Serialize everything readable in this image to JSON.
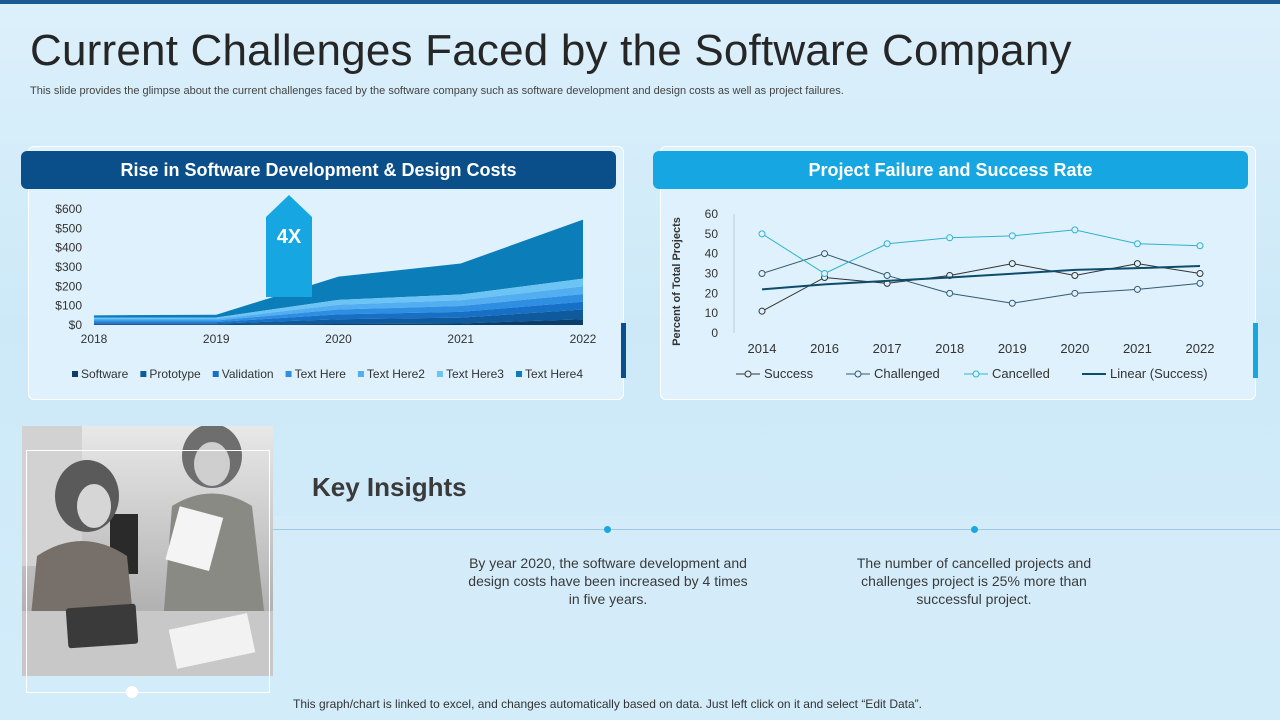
{
  "slide": {
    "title": "Current Challenges Faced by the Software Company",
    "subtitle": "This slide provides the glimpse about the current challenges faced by the software company such as software development and design costs as well as project failures.",
    "footer": "This graph/chart is linked to excel, and changes automatically based on data.  Just left click on it and select “Edit Data”."
  },
  "colors": {
    "dark_blue": "#0b4f8a",
    "light_blue": "#16a6e2",
    "accent_dot": "#1aa6e0"
  },
  "left_panel": {
    "header": "Rise in Software Development & Design Costs",
    "callout": "4X"
  },
  "right_panel": {
    "header": "Project Failure and Success Rate"
  },
  "insights": {
    "title": "Key Insights",
    "items": [
      "By year 2020, the software development and design costs have been increased by 4 times in five years.",
      "The number of cancelled projects and challenges project is 25% more than successful project."
    ]
  },
  "chart_data": [
    {
      "type": "area",
      "stacked": true,
      "categories": [
        "2018",
        "2019",
        "2020",
        "2021",
        "2022"
      ],
      "ylim": [
        0,
        600
      ],
      "yticks": [
        "$0",
        "$100",
        "$200",
        "$300",
        "$400",
        "$500",
        "$600"
      ],
      "legend_position": "bottom",
      "series": [
        {
          "name": "Software",
          "color": "#0a3d6b",
          "values": [
            2,
            2,
            5,
            8,
            30
          ]
        },
        {
          "name": "Prototype",
          "color": "#0e5a9c",
          "values": [
            5,
            5,
            25,
            30,
            50
          ]
        },
        {
          "name": "Validation",
          "color": "#1670c6",
          "values": [
            8,
            8,
            25,
            30,
            40
          ]
        },
        {
          "name": "Text Here",
          "color": "#2e8fe2",
          "values": [
            8,
            8,
            25,
            30,
            40
          ]
        },
        {
          "name": "Text Here2",
          "color": "#52aef0",
          "values": [
            8,
            8,
            25,
            30,
            40
          ]
        },
        {
          "name": "Text Here3",
          "color": "#6cc4f4",
          "values": [
            8,
            8,
            25,
            30,
            40
          ]
        },
        {
          "name": "Text Here4",
          "color": "#0b7db8",
          "values": [
            11,
            14,
            120,
            160,
            305
          ]
        }
      ]
    },
    {
      "type": "line",
      "x": [
        "2014",
        "2016",
        "2017",
        "2018",
        "2019",
        "2020",
        "2021",
        "2022"
      ],
      "ylim": [
        0,
        60
      ],
      "yticks": [
        0,
        10,
        20,
        30,
        40,
        50,
        60
      ],
      "ylabel": "Percent of Total Projects",
      "legend_position": "bottom",
      "series": [
        {
          "name": "Success",
          "color": "#333333",
          "marker": true,
          "values": [
            11,
            28,
            25,
            29,
            35,
            29,
            35,
            30
          ]
        },
        {
          "name": "Challenged",
          "color": "#335a70",
          "marker": true,
          "values": [
            30,
            40,
            29,
            20,
            15,
            20,
            22,
            25
          ]
        },
        {
          "name": "Cancelled",
          "color": "#2fb3cc",
          "marker": true,
          "values": [
            50,
            30,
            45,
            48,
            49,
            52,
            45,
            44
          ]
        },
        {
          "name": "Linear (Success)",
          "color": "#0e4c6c",
          "marker": false,
          "values": [
            22,
            24.5,
            26.3,
            28,
            29.9,
            31.8,
            32.7,
            33.8
          ]
        }
      ]
    }
  ]
}
